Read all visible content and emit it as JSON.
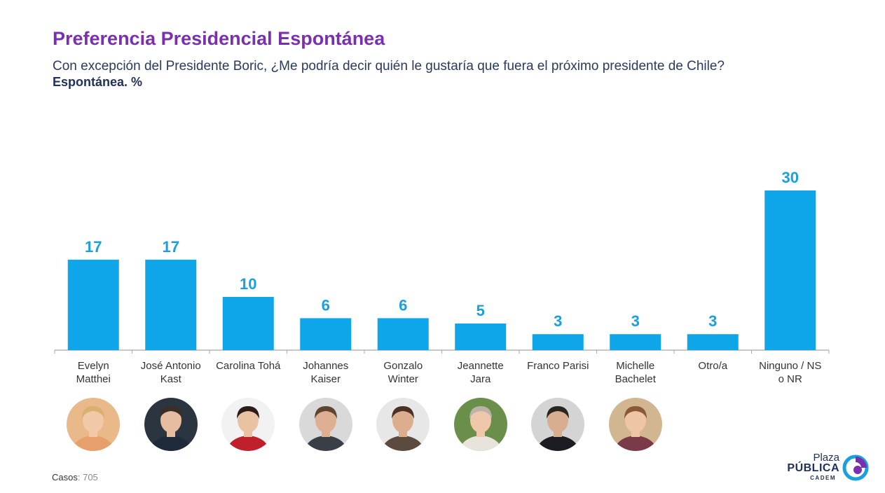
{
  "header": {
    "title": "Preferencia Presidencial Espontánea",
    "subtitle": "Con excepción del Presidente Boric, ¿Me podría decir quién le gustaría que fuera el próximo presidente de Chile?",
    "unit_label": "Espontánea. %"
  },
  "chart_data": {
    "type": "bar",
    "title": "Preferencia Presidencial Espontánea",
    "ylabel": "",
    "xlabel": "",
    "ylim": [
      0,
      30
    ],
    "grid": false,
    "categories": [
      [
        "Evelyn",
        "Matthei"
      ],
      [
        "José Antonio",
        "Kast"
      ],
      [
        "Carolina Tohá"
      ],
      [
        "Johannes",
        "Kaiser"
      ],
      [
        "Gonzalo",
        "Winter"
      ],
      [
        "Jeannette",
        "Jara"
      ],
      [
        "Franco Parisi"
      ],
      [
        "Michelle",
        "Bachelet"
      ],
      [
        "Otro/a"
      ],
      [
        "Ninguno / NS",
        "o NR"
      ]
    ],
    "values": [
      17,
      17,
      10,
      6,
      6,
      5,
      3,
      3,
      3,
      30
    ],
    "colors": {
      "bar": "#0ea5e9",
      "value_label": "#1aa0dc",
      "axis": "#a8a8a8",
      "category_label": "#333333"
    }
  },
  "avatars": [
    {
      "name": "Evelyn Matthei",
      "icon": "portrait-photo",
      "bg": "#e9b98a",
      "skin": "#f1c9a8",
      "hair": "#d9b070",
      "clothes": "#e7a06b"
    },
    {
      "name": "José Antonio Kast",
      "icon": "portrait-photo",
      "bg": "#2b3540",
      "skin": "#e6bda0",
      "hair": "#3b2e26",
      "clothes": "#1f2a3a"
    },
    {
      "name": "Carolina Tohá",
      "icon": "portrait-photo",
      "bg": "#f2f2f2",
      "skin": "#e9c1a3",
      "hair": "#2a1c16",
      "clothes": "#c0202c"
    },
    {
      "name": "Johannes Kaiser",
      "icon": "portrait-photo",
      "bg": "#d9d9d9",
      "skin": "#ddb093",
      "hair": "#5e4530",
      "clothes": "#3a3f47"
    },
    {
      "name": "Gonzalo Winter",
      "icon": "portrait-photo",
      "bg": "#e7e7e7",
      "skin": "#dcae8e",
      "hair": "#4a3324",
      "clothes": "#5b4a3e"
    },
    {
      "name": "Jeannette Jara",
      "icon": "portrait-photo",
      "bg": "#6a8f4a",
      "skin": "#efc8ab",
      "hair": "#b9b3a8",
      "clothes": "#e8e4dc"
    },
    {
      "name": "Franco Parisi",
      "icon": "portrait-photo",
      "bg": "#d4d4d4",
      "skin": "#d9ad8f",
      "hair": "#2b2522",
      "clothes": "#1c1c22"
    },
    {
      "name": "Michelle Bachelet",
      "icon": "portrait-photo",
      "bg": "#d1b690",
      "skin": "#eec6a6",
      "hair": "#8a5a38",
      "clothes": "#7a3a4a"
    }
  ],
  "footer": {
    "casos_label": "Casos",
    "casos_value": ": 705"
  },
  "logo": {
    "line1": "Plaza",
    "line2": "PÚBLICA",
    "line3": "CADEM",
    "colors": {
      "text": "#22315a",
      "swirl_a": "#1aa0dc",
      "swirl_b": "#7a2fb0"
    }
  }
}
